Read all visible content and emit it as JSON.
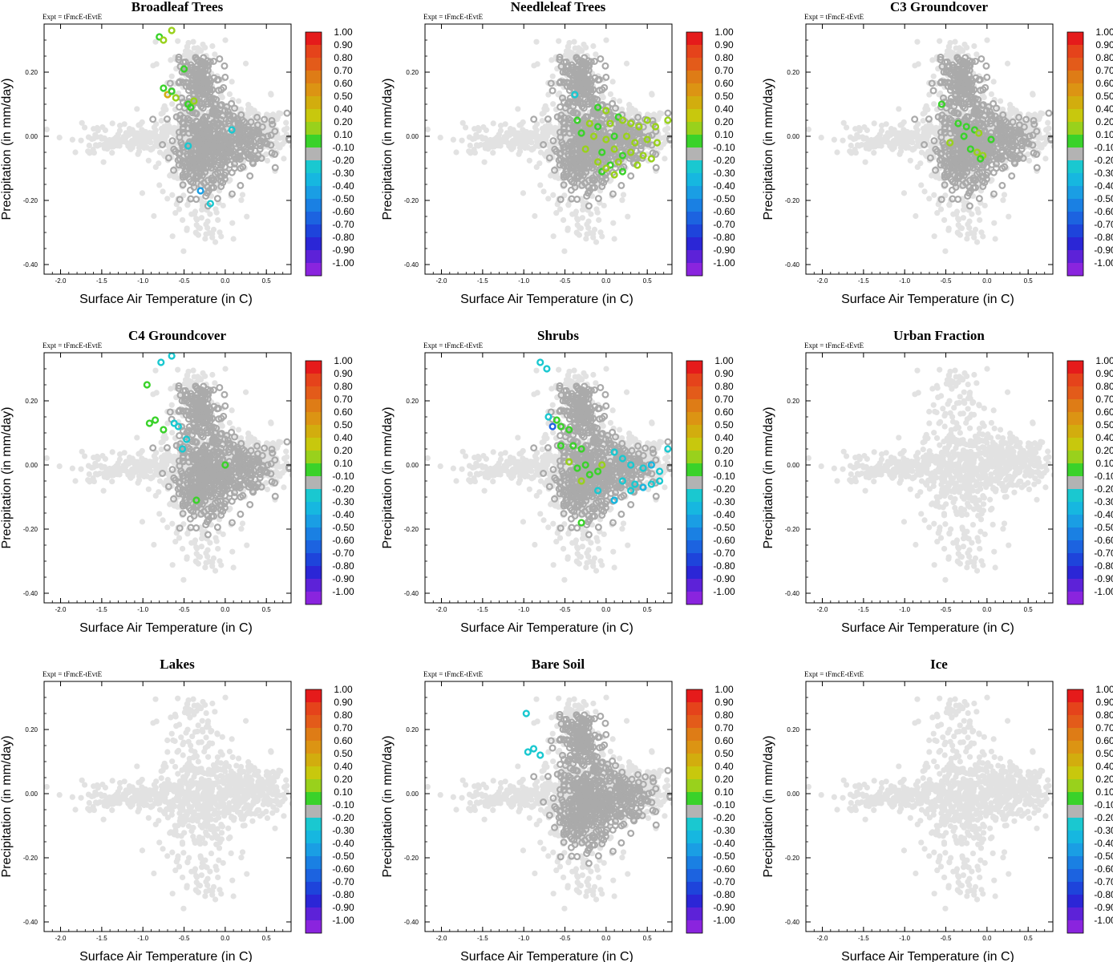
{
  "figure": {
    "expt_label": "Expt = tFmcE-tEvtE",
    "colorbar": {
      "labels": [
        "1.00",
        "0.90",
        "0.80",
        "0.70",
        "0.60",
        "0.50",
        "0.40",
        "0.20",
        "0.10",
        "-0.10",
        "-0.20",
        "-0.30",
        "-0.40",
        "-0.50",
        "-0.60",
        "-0.70",
        "-0.80",
        "-0.90",
        "-1.00"
      ],
      "colors": [
        "#e51b1b",
        "#e5431b",
        "#e35b1a",
        "#de7c16",
        "#dc9413",
        "#d2ad0e",
        "#c8c80d",
        "#99d11c",
        "#3ad22a",
        "#b3b3b3",
        "#1ac8d0",
        "#16b7e0",
        "#1a9ee4",
        "#1a80e3",
        "#1c63e0",
        "#1e44db",
        "#2b26d6",
        "#5d22d8",
        "#8a24de"
      ]
    },
    "background_color": "#e2e2e2",
    "active_color": "#aaaaaa"
  },
  "chart_data": [
    {
      "type": "scatter",
      "title": "Broadleaf Trees",
      "xlabel": "Surface Air Temperature (in C)",
      "ylabel": "Precipitation (in mm/day)",
      "xlim": [
        -2.2,
        0.8
      ],
      "ylim": [
        -0.43,
        0.35
      ],
      "xticks": [
        "-2.0",
        "-1.5",
        "-1.0",
        "-0.5",
        "0.0",
        "0.5"
      ],
      "yticks": [
        "0.20",
        "0.00",
        "-0.20",
        "-0.40"
      ],
      "colored_points": [
        {
          "x": -0.8,
          "y": 0.31,
          "c": 0.1
        },
        {
          "x": -0.75,
          "y": 0.3,
          "c": 0.2
        },
        {
          "x": -0.65,
          "y": 0.33,
          "c": 0.2
        },
        {
          "x": -0.5,
          "y": 0.21,
          "c": 0.1
        },
        {
          "x": -0.75,
          "y": 0.15,
          "c": 0.1
        },
        {
          "x": -0.7,
          "y": 0.13,
          "c": 0.5
        },
        {
          "x": -0.65,
          "y": 0.14,
          "c": 0.1
        },
        {
          "x": -0.6,
          "y": 0.12,
          "c": 0.2
        },
        {
          "x": -0.45,
          "y": 0.1,
          "c": 0.1
        },
        {
          "x": -0.38,
          "y": 0.11,
          "c": 0.2
        },
        {
          "x": -0.42,
          "y": 0.09,
          "c": 0.1
        },
        {
          "x": 0.08,
          "y": 0.02,
          "c": -0.2
        },
        {
          "x": -0.45,
          "y": -0.03,
          "c": -0.2
        },
        {
          "x": -0.3,
          "y": -0.17,
          "c": -0.4
        },
        {
          "x": -0.18,
          "y": -0.21,
          "c": -0.2
        }
      ]
    },
    {
      "type": "scatter",
      "title": "Needleleaf Trees",
      "xlabel": "Surface Air Temperature (in C)",
      "ylabel": "Precipitation (in mm/day)",
      "xlim": [
        -2.2,
        0.8
      ],
      "ylim": [
        -0.43,
        0.35
      ],
      "xticks": [
        "-2.0",
        "-1.5",
        "-1.0",
        "-0.5",
        "0.0",
        "0.5"
      ],
      "yticks": [
        "0.20",
        "0.00",
        "-0.20",
        "-0.40"
      ],
      "colored_points": [
        {
          "x": -0.38,
          "y": 0.13,
          "c": -0.2
        },
        {
          "x": -0.1,
          "y": 0.09,
          "c": 0.1
        },
        {
          "x": 0.0,
          "y": 0.08,
          "c": 0.2
        },
        {
          "x": 0.15,
          "y": 0.06,
          "c": 0.1
        },
        {
          "x": -0.35,
          "y": 0.05,
          "c": 0.1
        },
        {
          "x": -0.2,
          "y": 0.04,
          "c": 0.2
        },
        {
          "x": -0.1,
          "y": 0.03,
          "c": 0.1
        },
        {
          "x": 0.05,
          "y": 0.04,
          "c": 0.2
        },
        {
          "x": 0.2,
          "y": 0.05,
          "c": 0.3
        },
        {
          "x": 0.3,
          "y": 0.04,
          "c": 0.2
        },
        {
          "x": 0.4,
          "y": 0.03,
          "c": 0.3
        },
        {
          "x": 0.5,
          "y": 0.05,
          "c": 0.2
        },
        {
          "x": 0.6,
          "y": 0.03,
          "c": 0.2
        },
        {
          "x": 0.75,
          "y": 0.05,
          "c": 0.3
        },
        {
          "x": -0.3,
          "y": 0.01,
          "c": 0.1
        },
        {
          "x": -0.15,
          "y": 0.0,
          "c": 0.2
        },
        {
          "x": 0.0,
          "y": -0.01,
          "c": 0.2
        },
        {
          "x": 0.1,
          "y": 0.0,
          "c": 0.1
        },
        {
          "x": 0.25,
          "y": 0.0,
          "c": 0.2
        },
        {
          "x": 0.35,
          "y": -0.02,
          "c": 0.3
        },
        {
          "x": 0.5,
          "y": -0.01,
          "c": 0.2
        },
        {
          "x": 0.62,
          "y": -0.02,
          "c": 0.3
        },
        {
          "x": -0.25,
          "y": -0.04,
          "c": 0.2
        },
        {
          "x": -0.05,
          "y": -0.05,
          "c": 0.1
        },
        {
          "x": 0.1,
          "y": -0.04,
          "c": 0.2
        },
        {
          "x": 0.2,
          "y": -0.06,
          "c": 0.1
        },
        {
          "x": 0.3,
          "y": -0.05,
          "c": 0.2
        },
        {
          "x": 0.45,
          "y": -0.06,
          "c": 0.3
        },
        {
          "x": 0.55,
          "y": -0.07,
          "c": 0.2
        },
        {
          "x": -0.1,
          "y": -0.08,
          "c": 0.2
        },
        {
          "x": 0.05,
          "y": -0.09,
          "c": 0.1
        },
        {
          "x": 0.15,
          "y": -0.08,
          "c": 0.2
        },
        {
          "x": 0.38,
          "y": -0.09,
          "c": 0.2
        },
        {
          "x": -0.05,
          "y": -0.11,
          "c": 0.1
        },
        {
          "x": 0.1,
          "y": -0.12,
          "c": 0.2
        },
        {
          "x": 0.2,
          "y": -0.11,
          "c": 0.1
        },
        {
          "x": 0.0,
          "y": -0.1,
          "c": 0.2
        }
      ]
    },
    {
      "type": "scatter",
      "title": "C3 Groundcover",
      "xlabel": "Surface Air Temperature (in C)",
      "ylabel": "Precipitation (in mm/day)",
      "xlim": [
        -2.2,
        0.8
      ],
      "ylim": [
        -0.43,
        0.35
      ],
      "xticks": [
        "-2.0",
        "-1.5",
        "-1.0",
        "-0.5",
        "0.0",
        "0.5"
      ],
      "yticks": [
        "0.20",
        "0.00",
        "-0.20",
        "-0.40"
      ],
      "colored_points": [
        {
          "x": -0.55,
          "y": 0.1,
          "c": 0.1
        },
        {
          "x": -0.35,
          "y": 0.04,
          "c": 0.1
        },
        {
          "x": -0.25,
          "y": 0.03,
          "c": 0.1
        },
        {
          "x": -0.15,
          "y": 0.02,
          "c": 0.1
        },
        {
          "x": -0.45,
          "y": -0.02,
          "c": 0.2
        },
        {
          "x": -0.28,
          "y": 0.0,
          "c": 0.1
        },
        {
          "x": -0.1,
          "y": 0.01,
          "c": 0.2
        },
        {
          "x": 0.05,
          "y": -0.01,
          "c": 0.1
        },
        {
          "x": -0.2,
          "y": -0.04,
          "c": 0.1
        },
        {
          "x": -0.05,
          "y": -0.06,
          "c": 0.2
        },
        {
          "x": -0.12,
          "y": -0.05,
          "c": 0.3
        },
        {
          "x": -0.08,
          "y": -0.07,
          "c": 0.1
        }
      ]
    },
    {
      "type": "scatter",
      "title": "C4 Groundcover",
      "xlabel": "Surface Air Temperature (in C)",
      "ylabel": "Precipitation (in mm/day)",
      "xlim": [
        -2.2,
        0.8
      ],
      "ylim": [
        -0.43,
        0.35
      ],
      "xticks": [
        "-2.0",
        "-1.5",
        "-1.0",
        "-0.5",
        "0.0",
        "0.5"
      ],
      "yticks": [
        "0.20",
        "0.00",
        "-0.20",
        "-0.40"
      ],
      "colored_points": [
        {
          "x": -0.78,
          "y": 0.32,
          "c": -0.2
        },
        {
          "x": -0.95,
          "y": 0.25,
          "c": 0.1
        },
        {
          "x": -0.65,
          "y": 0.34,
          "c": -0.2
        },
        {
          "x": -0.92,
          "y": 0.13,
          "c": 0.1
        },
        {
          "x": -0.85,
          "y": 0.14,
          "c": 0.1
        },
        {
          "x": -0.75,
          "y": 0.11,
          "c": 0.1
        },
        {
          "x": -0.62,
          "y": 0.13,
          "c": -0.2
        },
        {
          "x": -0.57,
          "y": 0.12,
          "c": -0.2
        },
        {
          "x": -0.52,
          "y": 0.05,
          "c": -0.2
        },
        {
          "x": -0.47,
          "y": 0.08,
          "c": -0.2
        },
        {
          "x": 0.0,
          "y": 0.0,
          "c": 0.1
        },
        {
          "x": -0.35,
          "y": -0.11,
          "c": 0.1
        }
      ]
    },
    {
      "type": "scatter",
      "title": "Shrubs",
      "xlabel": "Surface Air Temperature (in C)",
      "ylabel": "Precipitation (in mm/day)",
      "xlim": [
        -2.2,
        0.8
      ],
      "ylim": [
        -0.43,
        0.35
      ],
      "xticks": [
        "-2.0",
        "-1.5",
        "-1.0",
        "-0.5",
        "0.0",
        "0.5"
      ],
      "yticks": [
        "0.20",
        "0.00",
        "-0.20",
        "-0.40"
      ],
      "colored_points": [
        {
          "x": -0.8,
          "y": 0.32,
          "c": -0.2
        },
        {
          "x": -0.72,
          "y": 0.3,
          "c": -0.2
        },
        {
          "x": -0.7,
          "y": 0.15,
          "c": -0.2
        },
        {
          "x": -0.6,
          "y": 0.14,
          "c": 0.1
        },
        {
          "x": -0.55,
          "y": 0.12,
          "c": 0.1
        },
        {
          "x": -0.65,
          "y": 0.12,
          "c": -0.6
        },
        {
          "x": -0.45,
          "y": 0.11,
          "c": 0.1
        },
        {
          "x": -0.55,
          "y": 0.06,
          "c": 0.1
        },
        {
          "x": -0.4,
          "y": 0.06,
          "c": 0.1
        },
        {
          "x": -0.3,
          "y": 0.05,
          "c": 0.1
        },
        {
          "x": -0.45,
          "y": 0.01,
          "c": 0.2
        },
        {
          "x": -0.35,
          "y": -0.01,
          "c": 0.1
        },
        {
          "x": -0.25,
          "y": 0.0,
          "c": 0.1
        },
        {
          "x": -0.05,
          "y": 0.0,
          "c": 0.3
        },
        {
          "x": -0.2,
          "y": -0.03,
          "c": 0.1
        },
        {
          "x": -0.3,
          "y": -0.05,
          "c": 0.2
        },
        {
          "x": -0.1,
          "y": -0.02,
          "c": 0.1
        },
        {
          "x": 0.1,
          "y": 0.04,
          "c": -0.2
        },
        {
          "x": 0.2,
          "y": 0.02,
          "c": -0.2
        },
        {
          "x": 0.3,
          "y": 0.0,
          "c": -0.2
        },
        {
          "x": 0.45,
          "y": -0.01,
          "c": -0.2
        },
        {
          "x": 0.55,
          "y": 0.0,
          "c": -0.3
        },
        {
          "x": 0.65,
          "y": -0.02,
          "c": -0.2
        },
        {
          "x": 0.75,
          "y": 0.05,
          "c": -0.2
        },
        {
          "x": 0.2,
          "y": -0.05,
          "c": -0.2
        },
        {
          "x": 0.35,
          "y": -0.06,
          "c": -0.2
        },
        {
          "x": 0.45,
          "y": -0.07,
          "c": -0.3
        },
        {
          "x": 0.55,
          "y": -0.06,
          "c": -0.2
        },
        {
          "x": 0.65,
          "y": -0.05,
          "c": -0.2
        },
        {
          "x": 0.3,
          "y": -0.08,
          "c": -0.2
        },
        {
          "x": 0.1,
          "y": -0.11,
          "c": -0.3
        },
        {
          "x": -0.1,
          "y": -0.08,
          "c": -0.2
        },
        {
          "x": -0.3,
          "y": -0.18,
          "c": 0.1
        }
      ]
    },
    {
      "type": "scatter",
      "title": "Urban Fraction",
      "xlabel": "Surface Air Temperature (in C)",
      "ylabel": "Precipitation (in mm/day)",
      "xlim": [
        -2.2,
        0.8
      ],
      "ylim": [
        -0.43,
        0.35
      ],
      "xticks": [
        "-2.0",
        "-1.5",
        "-1.0",
        "-0.5",
        "0.0",
        "0.5"
      ],
      "yticks": [
        "0.20",
        "0.00",
        "-0.20",
        "-0.40"
      ],
      "colored_points": []
    },
    {
      "type": "scatter",
      "title": "Lakes",
      "xlabel": "Surface Air Temperature (in C)",
      "ylabel": "Precipitation (in mm/day)",
      "xlim": [
        -2.2,
        0.8
      ],
      "ylim": [
        -0.43,
        0.35
      ],
      "xticks": [
        "-2.0",
        "-1.5",
        "-1.0",
        "-0.5",
        "0.0",
        "0.5"
      ],
      "yticks": [
        "0.20",
        "0.00",
        "-0.20",
        "-0.40"
      ],
      "colored_points": []
    },
    {
      "type": "scatter",
      "title": "Bare Soil",
      "xlabel": "Surface Air Temperature (in C)",
      "ylabel": "Precipitation (in mm/day)",
      "xlim": [
        -2.2,
        0.8
      ],
      "ylim": [
        -0.43,
        0.35
      ],
      "xticks": [
        "-2.0",
        "-1.5",
        "-1.0",
        "-0.5",
        "0.0",
        "0.5"
      ],
      "yticks": [
        "0.20",
        "0.00",
        "-0.20",
        "-0.40"
      ],
      "colored_points": [
        {
          "x": -0.97,
          "y": 0.25,
          "c": -0.2
        },
        {
          "x": -0.95,
          "y": 0.13,
          "c": -0.2
        },
        {
          "x": -0.88,
          "y": 0.14,
          "c": -0.2
        },
        {
          "x": -0.8,
          "y": 0.12,
          "c": -0.2
        }
      ]
    },
    {
      "type": "scatter",
      "title": "Ice",
      "xlabel": "Surface Air Temperature (in C)",
      "ylabel": "Precipitation (in mm/day)",
      "xlim": [
        -2.2,
        0.8
      ],
      "ylim": [
        -0.43,
        0.35
      ],
      "xticks": [
        "-2.0",
        "-1.5",
        "-1.0",
        "-0.5",
        "0.0",
        "0.5"
      ],
      "yticks": [
        "0.20",
        "0.00",
        "-0.20",
        "-0.40"
      ],
      "colored_points": []
    }
  ]
}
